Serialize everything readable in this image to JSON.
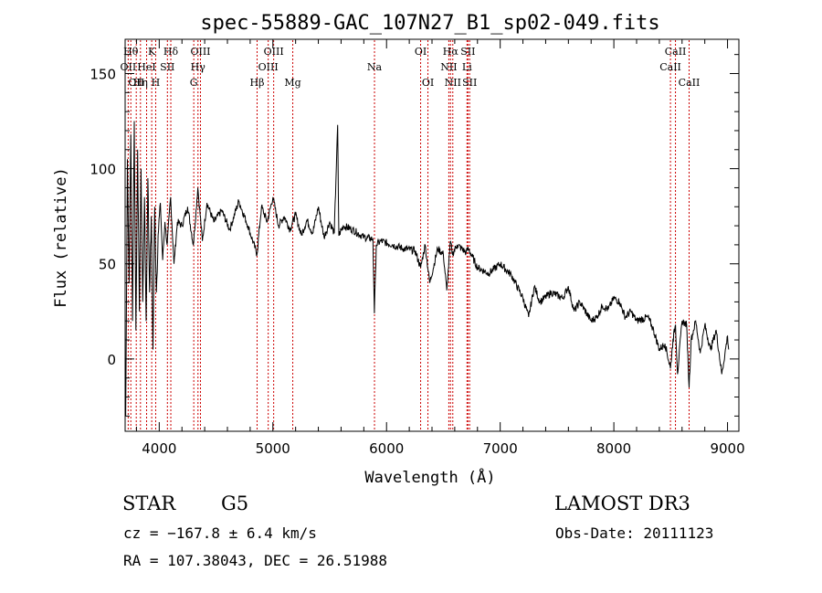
{
  "chart_data": {
    "type": "line",
    "title": "spec-55889-GAC_107N27_B1_sp02-049.fits",
    "xlabel": "Wavelength (Å)",
    "ylabel": "Flux (relative)",
    "xlim": [
      3700,
      9100
    ],
    "ylim": [
      -38,
      168
    ],
    "xticks": [
      4000,
      5000,
      6000,
      7000,
      8000,
      9000
    ],
    "yticks": [
      0,
      50,
      100,
      150
    ],
    "grid": false,
    "series": [
      {
        "name": "spectrum",
        "x": [
          3705,
          3720,
          3735,
          3750,
          3765,
          3780,
          3795,
          3810,
          3825,
          3840,
          3855,
          3870,
          3885,
          3900,
          3915,
          3930,
          3945,
          3960,
          3975,
          3990,
          4010,
          4030,
          4050,
          4070,
          4100,
          4130,
          4160,
          4200,
          4250,
          4300,
          4340,
          4380,
          4420,
          4480,
          4550,
          4620,
          4700,
          4780,
          4860,
          4900,
          4950,
          5000,
          5050,
          5100,
          5150,
          5200,
          5250,
          5300,
          5350,
          5400,
          5450,
          5500,
          5540,
          5570,
          5580,
          5620,
          5700,
          5800,
          5880,
          5893,
          5910,
          5950,
          6050,
          6150,
          6250,
          6300,
          6340,
          6380,
          6450,
          6500,
          6530,
          6563,
          6580,
          6620,
          6700,
          6720,
          6800,
          6900,
          7000,
          7100,
          7200,
          7250,
          7300,
          7350,
          7450,
          7550,
          7600,
          7650,
          7700,
          7800,
          7850,
          7900,
          7950,
          8000,
          8050,
          8100,
          8150,
          8200,
          8300,
          8350,
          8400,
          8450,
          8498,
          8520,
          8542,
          8560,
          8600,
          8640,
          8662,
          8680,
          8720,
          8760,
          8800,
          8850,
          8900,
          8950,
          9000,
          9010
        ],
        "values": [
          -30,
          105,
          40,
          118,
          20,
          125,
          15,
          110,
          25,
          100,
          30,
          85,
          20,
          95,
          35,
          75,
          5,
          80,
          35,
          65,
          82,
          52,
          72,
          60,
          85,
          50,
          72,
          70,
          80,
          60,
          90,
          62,
          82,
          72,
          78,
          68,
          83,
          70,
          55,
          80,
          72,
          85,
          70,
          75,
          68,
          76,
          65,
          73,
          66,
          80,
          64,
          72,
          66,
          123,
          65,
          70,
          68,
          64,
          63,
          24,
          60,
          62,
          60,
          58,
          57,
          48,
          60,
          40,
          58,
          55,
          36,
          62,
          55,
          60,
          56,
          58,
          48,
          45,
          50,
          44,
          32,
          22,
          38,
          30,
          35,
          32,
          38,
          25,
          30,
          20,
          22,
          28,
          26,
          32,
          30,
          22,
          25,
          20,
          22,
          15,
          5,
          8,
          -5,
          10,
          18,
          -8,
          20,
          18,
          -15,
          10,
          20,
          3,
          18,
          5,
          15,
          -8,
          12,
          5
        ]
      }
    ],
    "lines": [
      {
        "name": "OII",
        "x": 3727,
        "row": 1
      },
      {
        "name": "Hθ",
        "x": 3750,
        "row": 0
      },
      {
        "name": "OII",
        "x": 3798,
        "row": 2
      },
      {
        "name": "Hη",
        "x": 3835,
        "row": 2
      },
      {
        "name": "HeI",
        "x": 3889,
        "row": 1
      },
      {
        "name": "K",
        "x": 3934,
        "row": 0
      },
      {
        "name": "H",
        "x": 3969,
        "row": 2
      },
      {
        "name": "SII",
        "x": 4072,
        "row": 1
      },
      {
        "name": "Hδ",
        "x": 4102,
        "row": 0
      },
      {
        "name": "G",
        "x": 4304,
        "row": 2
      },
      {
        "name": "Hγ",
        "x": 4341,
        "row": 1
      },
      {
        "name": "OIII",
        "x": 4363,
        "row": 0
      },
      {
        "name": "Hβ",
        "x": 4861,
        "row": 2
      },
      {
        "name": "OIII",
        "x": 4959,
        "row": 1
      },
      {
        "name": "OIII",
        "x": 5007,
        "row": 0
      },
      {
        "name": "Mg",
        "x": 5175,
        "row": 2
      },
      {
        "name": "Na",
        "x": 5894,
        "row": 1
      },
      {
        "name": "OI",
        "x": 6300,
        "row": 0
      },
      {
        "name": "OI",
        "x": 6364,
        "row": 2
      },
      {
        "name": "NII",
        "x": 6548,
        "row": 1
      },
      {
        "name": "Hα",
        "x": 6563,
        "row": 0
      },
      {
        "name": "NII",
        "x": 6583,
        "row": 2
      },
      {
        "name": "Li",
        "x": 6708,
        "row": 1
      },
      {
        "name": "SII",
        "x": 6716,
        "row": 0
      },
      {
        "name": "SII",
        "x": 6731,
        "row": 2
      },
      {
        "name": "CaII",
        "x": 8498,
        "row": 1
      },
      {
        "name": "CaII",
        "x": 8542,
        "row": 0
      },
      {
        "name": "CaII",
        "x": 8662,
        "row": 2
      }
    ],
    "line_color": "#cc0000"
  },
  "info": {
    "object_class": "STAR",
    "subclass": "G5",
    "survey": "LAMOST DR3",
    "cz": "cz = −167.8 ± 6.4 km/s",
    "obs_date": "Obs-Date: 20111123",
    "coords": "RA = 107.38043, DEC =  26.51988"
  }
}
